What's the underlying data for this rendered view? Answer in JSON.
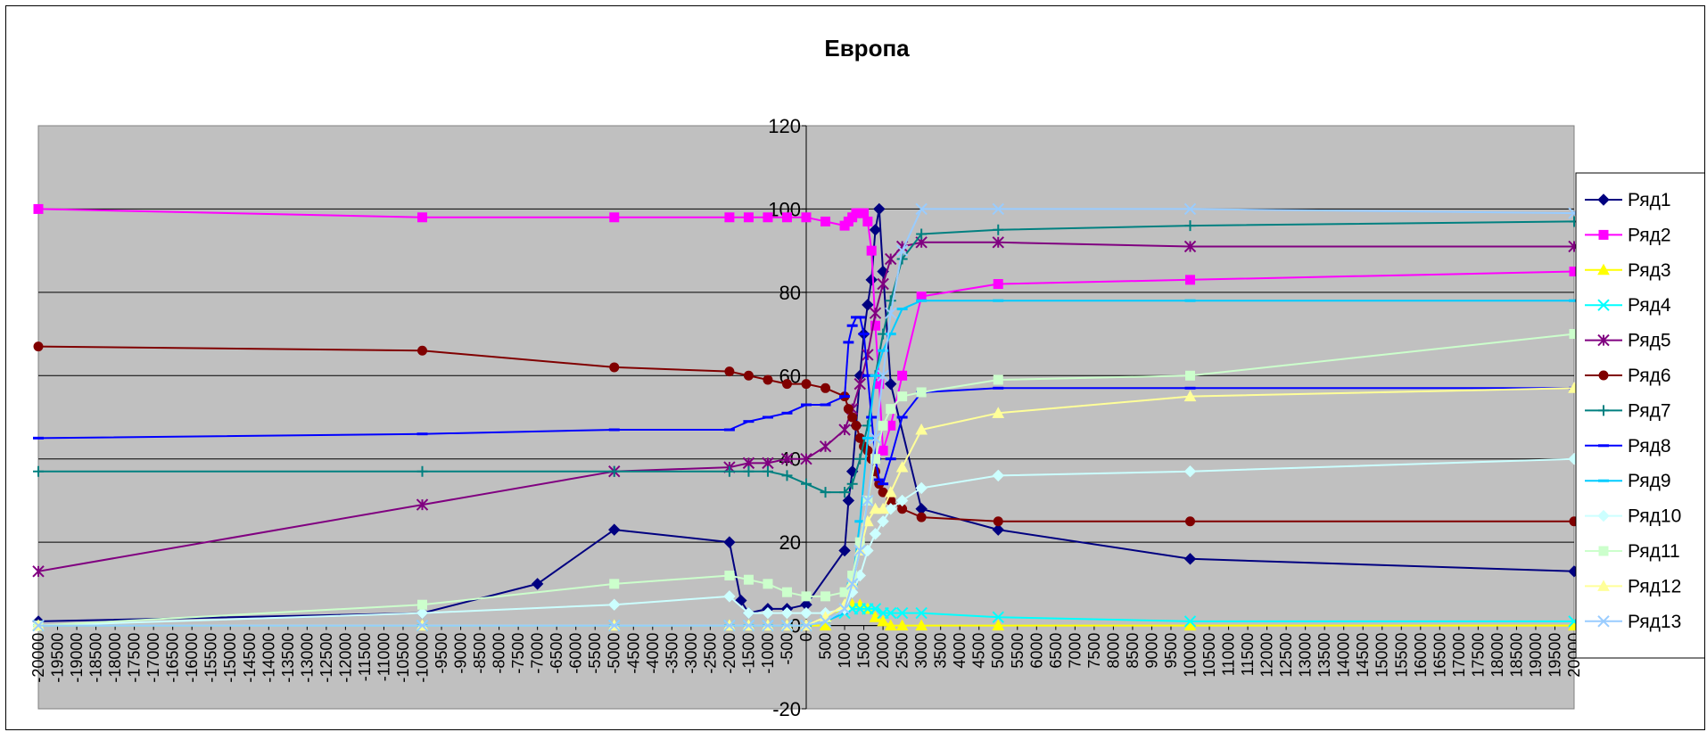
{
  "chart_data": {
    "type": "line",
    "title": "Европа",
    "xlabel": "",
    "ylabel": "",
    "xlim": [
      -20000,
      20000
    ],
    "ylim": [
      -20,
      120
    ],
    "y_ticks": [
      120,
      100,
      80,
      60,
      40,
      20,
      0,
      -20
    ],
    "x_ticks": [
      -20000,
      -19500,
      -19000,
      -18500,
      -18000,
      -17500,
      -17000,
      -16500,
      -16000,
      -15500,
      -15000,
      -14500,
      -14000,
      -13500,
      -13000,
      -12500,
      -12000,
      -11500,
      -11000,
      -10500,
      -10000,
      -9500,
      -9000,
      -8500,
      -8000,
      -7500,
      -7000,
      -6500,
      -6000,
      -5500,
      -5000,
      -4500,
      -4000,
      -3500,
      -3000,
      -2500,
      -2000,
      -1500,
      -1000,
      -500,
      0,
      500,
      1000,
      1500,
      2000,
      2500,
      3000,
      3500,
      4000,
      4500,
      5000,
      5500,
      6000,
      6500,
      7000,
      7500,
      8000,
      8500,
      9000,
      9500,
      10000,
      10500,
      11000,
      11500,
      12000,
      12500,
      13000,
      13500,
      14000,
      14500,
      15000,
      15500,
      16000,
      16500,
      17000,
      17500,
      18000,
      18500,
      19000,
      19500,
      20000
    ],
    "grid": true,
    "plot_background": "#C0C0C0",
    "legend_position": "right",
    "series": [
      {
        "name": "Ряд1",
        "color": "#000080",
        "marker": "diamond",
        "x": [
          -20000,
          -10000,
          -7000,
          -5000,
          -2000,
          -1700,
          -1500,
          -1000,
          -500,
          0,
          1000,
          1100,
          1200,
          1300,
          1400,
          1500,
          1600,
          1700,
          1800,
          1900,
          2000,
          2200,
          3000,
          5000,
          10000,
          20000
        ],
        "y": [
          1,
          3,
          10,
          23,
          20,
          6,
          3,
          4,
          4,
          5,
          18,
          30,
          37,
          48,
          60,
          70,
          77,
          83,
          95,
          100,
          85,
          58,
          28,
          23,
          16,
          13
        ]
      },
      {
        "name": "Ряд2",
        "color": "#FF00FF",
        "marker": "square",
        "x": [
          -20000,
          -10000,
          -5000,
          -2000,
          -1500,
          -1000,
          -500,
          0,
          500,
          1000,
          1100,
          1200,
          1300,
          1400,
          1500,
          1600,
          1700,
          1800,
          1900,
          2000,
          2200,
          2500,
          3000,
          5000,
          10000,
          20000
        ],
        "y": [
          100,
          98,
          98,
          98,
          98,
          98,
          98,
          98,
          97,
          96,
          97,
          98,
          99,
          99,
          99,
          97,
          90,
          72,
          58,
          42,
          48,
          60,
          79,
          82,
          83,
          85
        ]
      },
      {
        "name": "Ряд3",
        "color": "#FFFF00",
        "marker": "triangle",
        "x": [
          -20000,
          -10000,
          -5000,
          -2000,
          -1500,
          -1000,
          -500,
          0,
          500,
          1000,
          1200,
          1400,
          1600,
          1800,
          2000,
          2200,
          2500,
          3000,
          5000,
          10000,
          20000
        ],
        "y": [
          0,
          0,
          0,
          0,
          0,
          0,
          0,
          0,
          0,
          5,
          5,
          5,
          4,
          2,
          1,
          0,
          0,
          0,
          0,
          0,
          0
        ]
      },
      {
        "name": "Ряд4",
        "color": "#00FFFF",
        "marker": "x",
        "x": [
          -20000,
          -10000,
          -5000,
          -2000,
          -1500,
          -1000,
          -500,
          0,
          500,
          1000,
          1200,
          1400,
          1600,
          1800,
          2000,
          2200,
          2500,
          3000,
          5000,
          10000,
          20000
        ],
        "y": [
          0,
          0,
          0,
          0,
          0,
          0,
          0,
          0,
          1,
          3,
          4,
          4,
          4,
          4,
          3,
          3,
          3,
          3,
          2,
          1,
          1
        ]
      },
      {
        "name": "Ряд5",
        "color": "#800080",
        "marker": "star",
        "x": [
          -20000,
          -10000,
          -5000,
          -2000,
          -1500,
          -1000,
          -500,
          0,
          500,
          1000,
          1200,
          1400,
          1600,
          1800,
          2000,
          2200,
          2500,
          3000,
          5000,
          10000,
          20000
        ],
        "y": [
          13,
          29,
          37,
          38,
          39,
          39,
          40,
          40,
          43,
          47,
          52,
          58,
          65,
          75,
          82,
          88,
          91,
          92,
          92,
          91,
          91
        ]
      },
      {
        "name": "Ряд6",
        "color": "#800000",
        "marker": "circle",
        "x": [
          -20000,
          -10000,
          -5000,
          -2000,
          -1500,
          -1000,
          -500,
          0,
          500,
          1000,
          1100,
          1200,
          1300,
          1400,
          1500,
          1600,
          1700,
          1800,
          1900,
          2000,
          2200,
          2500,
          3000,
          5000,
          10000,
          20000
        ],
        "y": [
          67,
          66,
          62,
          61,
          60,
          59,
          58,
          58,
          57,
          55,
          52,
          50,
          48,
          45,
          43,
          42,
          40,
          37,
          34,
          32,
          30,
          28,
          26,
          25,
          25,
          25
        ]
      },
      {
        "name": "Ряд7",
        "color": "#008080",
        "marker": "plus",
        "x": [
          -20000,
          -10000,
          -5000,
          -2000,
          -1500,
          -1000,
          -500,
          0,
          500,
          1000,
          1200,
          1400,
          1600,
          1800,
          2000,
          2200,
          2500,
          3000,
          5000,
          10000,
          20000
        ],
        "y": [
          37,
          37,
          37,
          37,
          37,
          37,
          36,
          34,
          32,
          32,
          34,
          40,
          48,
          60,
          70,
          78,
          88,
          94,
          95,
          96,
          97
        ]
      },
      {
        "name": "Ряд8",
        "color": "#0000FF",
        "marker": "dash",
        "x": [
          -20000,
          -10000,
          -5000,
          -2000,
          -1500,
          -1000,
          -500,
          0,
          500,
          1000,
          1100,
          1200,
          1300,
          1400,
          1500,
          1600,
          1700,
          1800,
          1900,
          2000,
          2200,
          2500,
          3000,
          5000,
          10000,
          20000
        ],
        "y": [
          45,
          46,
          47,
          47,
          49,
          50,
          51,
          53,
          53,
          55,
          68,
          72,
          74,
          74,
          70,
          60,
          50,
          40,
          35,
          34,
          40,
          50,
          56,
          57,
          57,
          57
        ]
      },
      {
        "name": "Ряд9",
        "color": "#00CCFF",
        "marker": "dash",
        "x": [
          -20000,
          -10000,
          -5000,
          -2000,
          -1500,
          -1000,
          -500,
          0,
          500,
          1000,
          1200,
          1400,
          1600,
          1800,
          2000,
          2200,
          2500,
          3000,
          5000,
          10000,
          20000
        ],
        "y": [
          0,
          0,
          0,
          0,
          0,
          0,
          0,
          0,
          1,
          3,
          10,
          25,
          45,
          60,
          66,
          70,
          76,
          78,
          78,
          78,
          78
        ]
      },
      {
        "name": "Ряд10",
        "color": "#CCFFFF",
        "marker": "diamond",
        "x": [
          -20000,
          -10000,
          -5000,
          -2000,
          -1500,
          -1000,
          -500,
          0,
          500,
          1000,
          1200,
          1400,
          1600,
          1800,
          2000,
          2200,
          2500,
          3000,
          5000,
          10000,
          20000
        ],
        "y": [
          0,
          3,
          5,
          7,
          3,
          3,
          3,
          3,
          3,
          4,
          8,
          12,
          18,
          22,
          25,
          28,
          30,
          33,
          36,
          37,
          40
        ]
      },
      {
        "name": "Ряд11",
        "color": "#CCFFCC",
        "marker": "square",
        "x": [
          -20000,
          -10000,
          -5000,
          -2000,
          -1500,
          -1000,
          -500,
          0,
          500,
          1000,
          1200,
          1400,
          1600,
          1800,
          2000,
          2200,
          2500,
          3000,
          5000,
          10000,
          20000
        ],
        "y": [
          0,
          5,
          10,
          12,
          11,
          10,
          8,
          7,
          7,
          8,
          12,
          20,
          30,
          40,
          48,
          52,
          55,
          56,
          59,
          60,
          70
        ]
      },
      {
        "name": "Ряд12",
        "color": "#FFFF99",
        "marker": "triangle",
        "x": [
          -20000,
          -10000,
          -5000,
          -2000,
          -1500,
          -1000,
          -500,
          0,
          500,
          1000,
          1200,
          1400,
          1600,
          1800,
          2000,
          2200,
          2500,
          3000,
          5000,
          10000,
          20000
        ],
        "y": [
          0,
          0,
          0,
          0,
          0,
          0,
          0,
          0,
          2,
          5,
          10,
          18,
          25,
          28,
          28,
          32,
          38,
          47,
          51,
          55,
          57
        ]
      },
      {
        "name": "Ряд13",
        "color": "#99CCFF",
        "marker": "x",
        "x": [
          -20000,
          -10000,
          -5000,
          -2000,
          -1500,
          -1000,
          -500,
          0,
          500,
          1000,
          1200,
          1400,
          1600,
          1800,
          2000,
          2200,
          2500,
          3000,
          5000,
          10000,
          20000
        ],
        "y": [
          0,
          0,
          0,
          0,
          0,
          0,
          0,
          0,
          1,
          4,
          10,
          18,
          30,
          45,
          60,
          75,
          90,
          100,
          100,
          100,
          99
        ]
      }
    ]
  }
}
